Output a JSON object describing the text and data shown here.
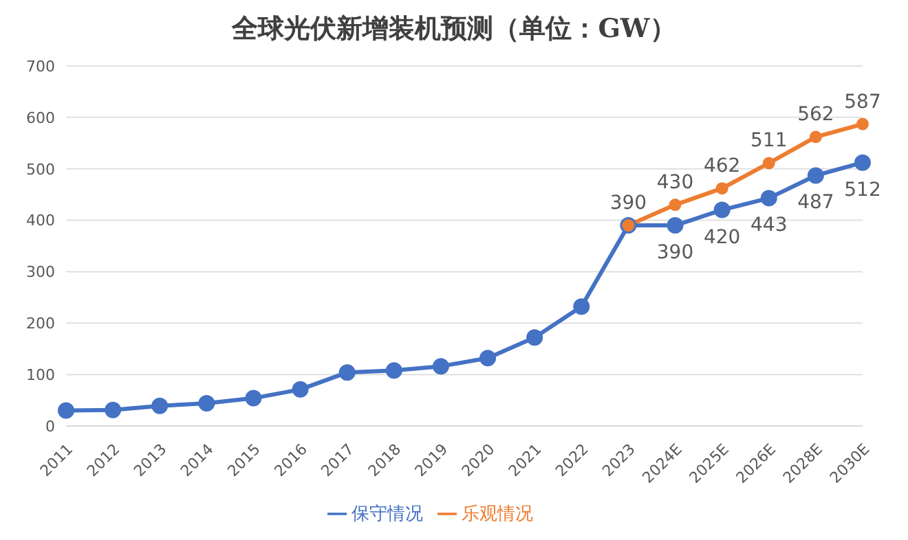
{
  "chart_data": {
    "type": "line",
    "title": "全球光伏新增装机预测（单位：GW）",
    "categories": [
      "2011",
      "2012",
      "2013",
      "2014",
      "2015",
      "2016",
      "2017",
      "2018",
      "2019",
      "2020",
      "2021",
      "2022",
      "2023",
      "2024E",
      "2025E",
      "2026E",
      "2028E",
      "2030E"
    ],
    "series": [
      {
        "name": "保守情况",
        "color": "#4472c4",
        "values": [
          30,
          31,
          39,
          44,
          54,
          71,
          104,
          108,
          116,
          132,
          172,
          232,
          390,
          390,
          420,
          443,
          487,
          512
        ],
        "value_labels": [
          null,
          null,
          null,
          null,
          null,
          null,
          null,
          null,
          null,
          null,
          null,
          null,
          null,
          "390",
          "420",
          "443",
          "487",
          "512"
        ]
      },
      {
        "name": "乐观情况",
        "color": "#ed7d31",
        "values": [
          null,
          null,
          null,
          null,
          null,
          null,
          null,
          null,
          null,
          null,
          null,
          null,
          390,
          430,
          462,
          511,
          562,
          587
        ],
        "value_labels": [
          null,
          null,
          null,
          null,
          null,
          null,
          null,
          null,
          null,
          null,
          null,
          null,
          "390",
          "430",
          "462",
          "511",
          "562",
          "587"
        ]
      }
    ],
    "ylim": [
      0,
      700
    ],
    "yticks": [
      0,
      100,
      200,
      300,
      400,
      500,
      600,
      700
    ],
    "grid": "y",
    "legend": "bottom",
    "marker": "circle",
    "line_style": "solid"
  }
}
